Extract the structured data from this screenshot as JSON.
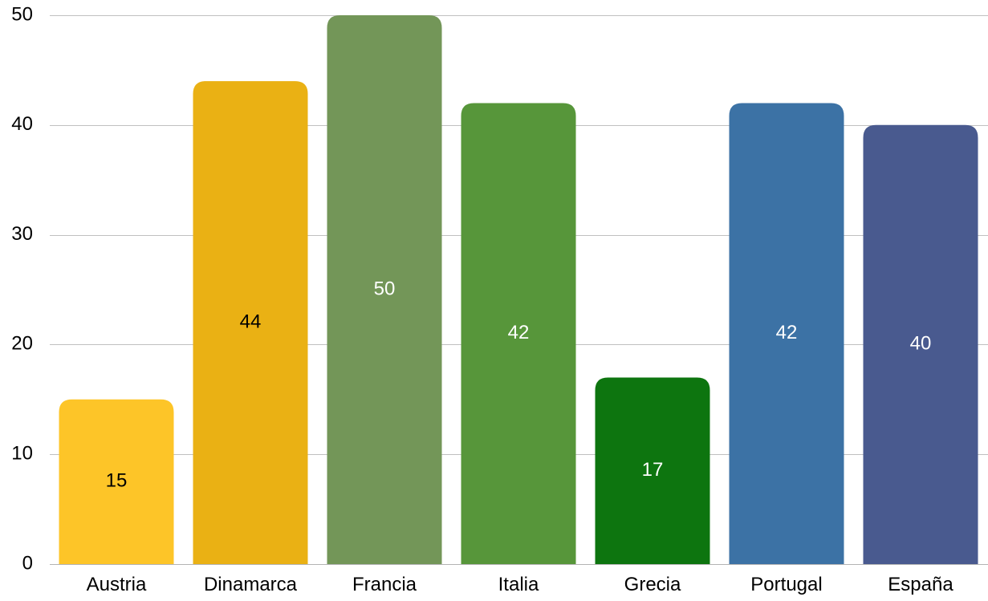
{
  "chart_data": {
    "type": "bar",
    "title": "",
    "xlabel": "",
    "ylabel": "",
    "categories": [
      "Austria",
      "Dinamarca",
      "Francia",
      "Italia",
      "Grecia",
      "Portugal",
      "España"
    ],
    "values": [
      15,
      44,
      50,
      42,
      17,
      42,
      40
    ],
    "ylim": [
      0,
      50
    ],
    "yticks": [
      "0",
      "10",
      "20",
      "30",
      "40",
      "50"
    ],
    "grid": true,
    "legend": "none",
    "data_labels": [
      "15",
      "44",
      "50",
      "42",
      "17",
      "42",
      "40"
    ],
    "colors": [
      "#fdc528",
      "#eab114",
      "#739658",
      "#57963a",
      "#0d750f",
      "#3c72a5",
      "#495a8f"
    ],
    "label_colors": [
      "#000000",
      "#000000",
      "#ffffff",
      "#ffffff",
      "#ffffff",
      "#ffffff",
      "#ffffff"
    ]
  }
}
